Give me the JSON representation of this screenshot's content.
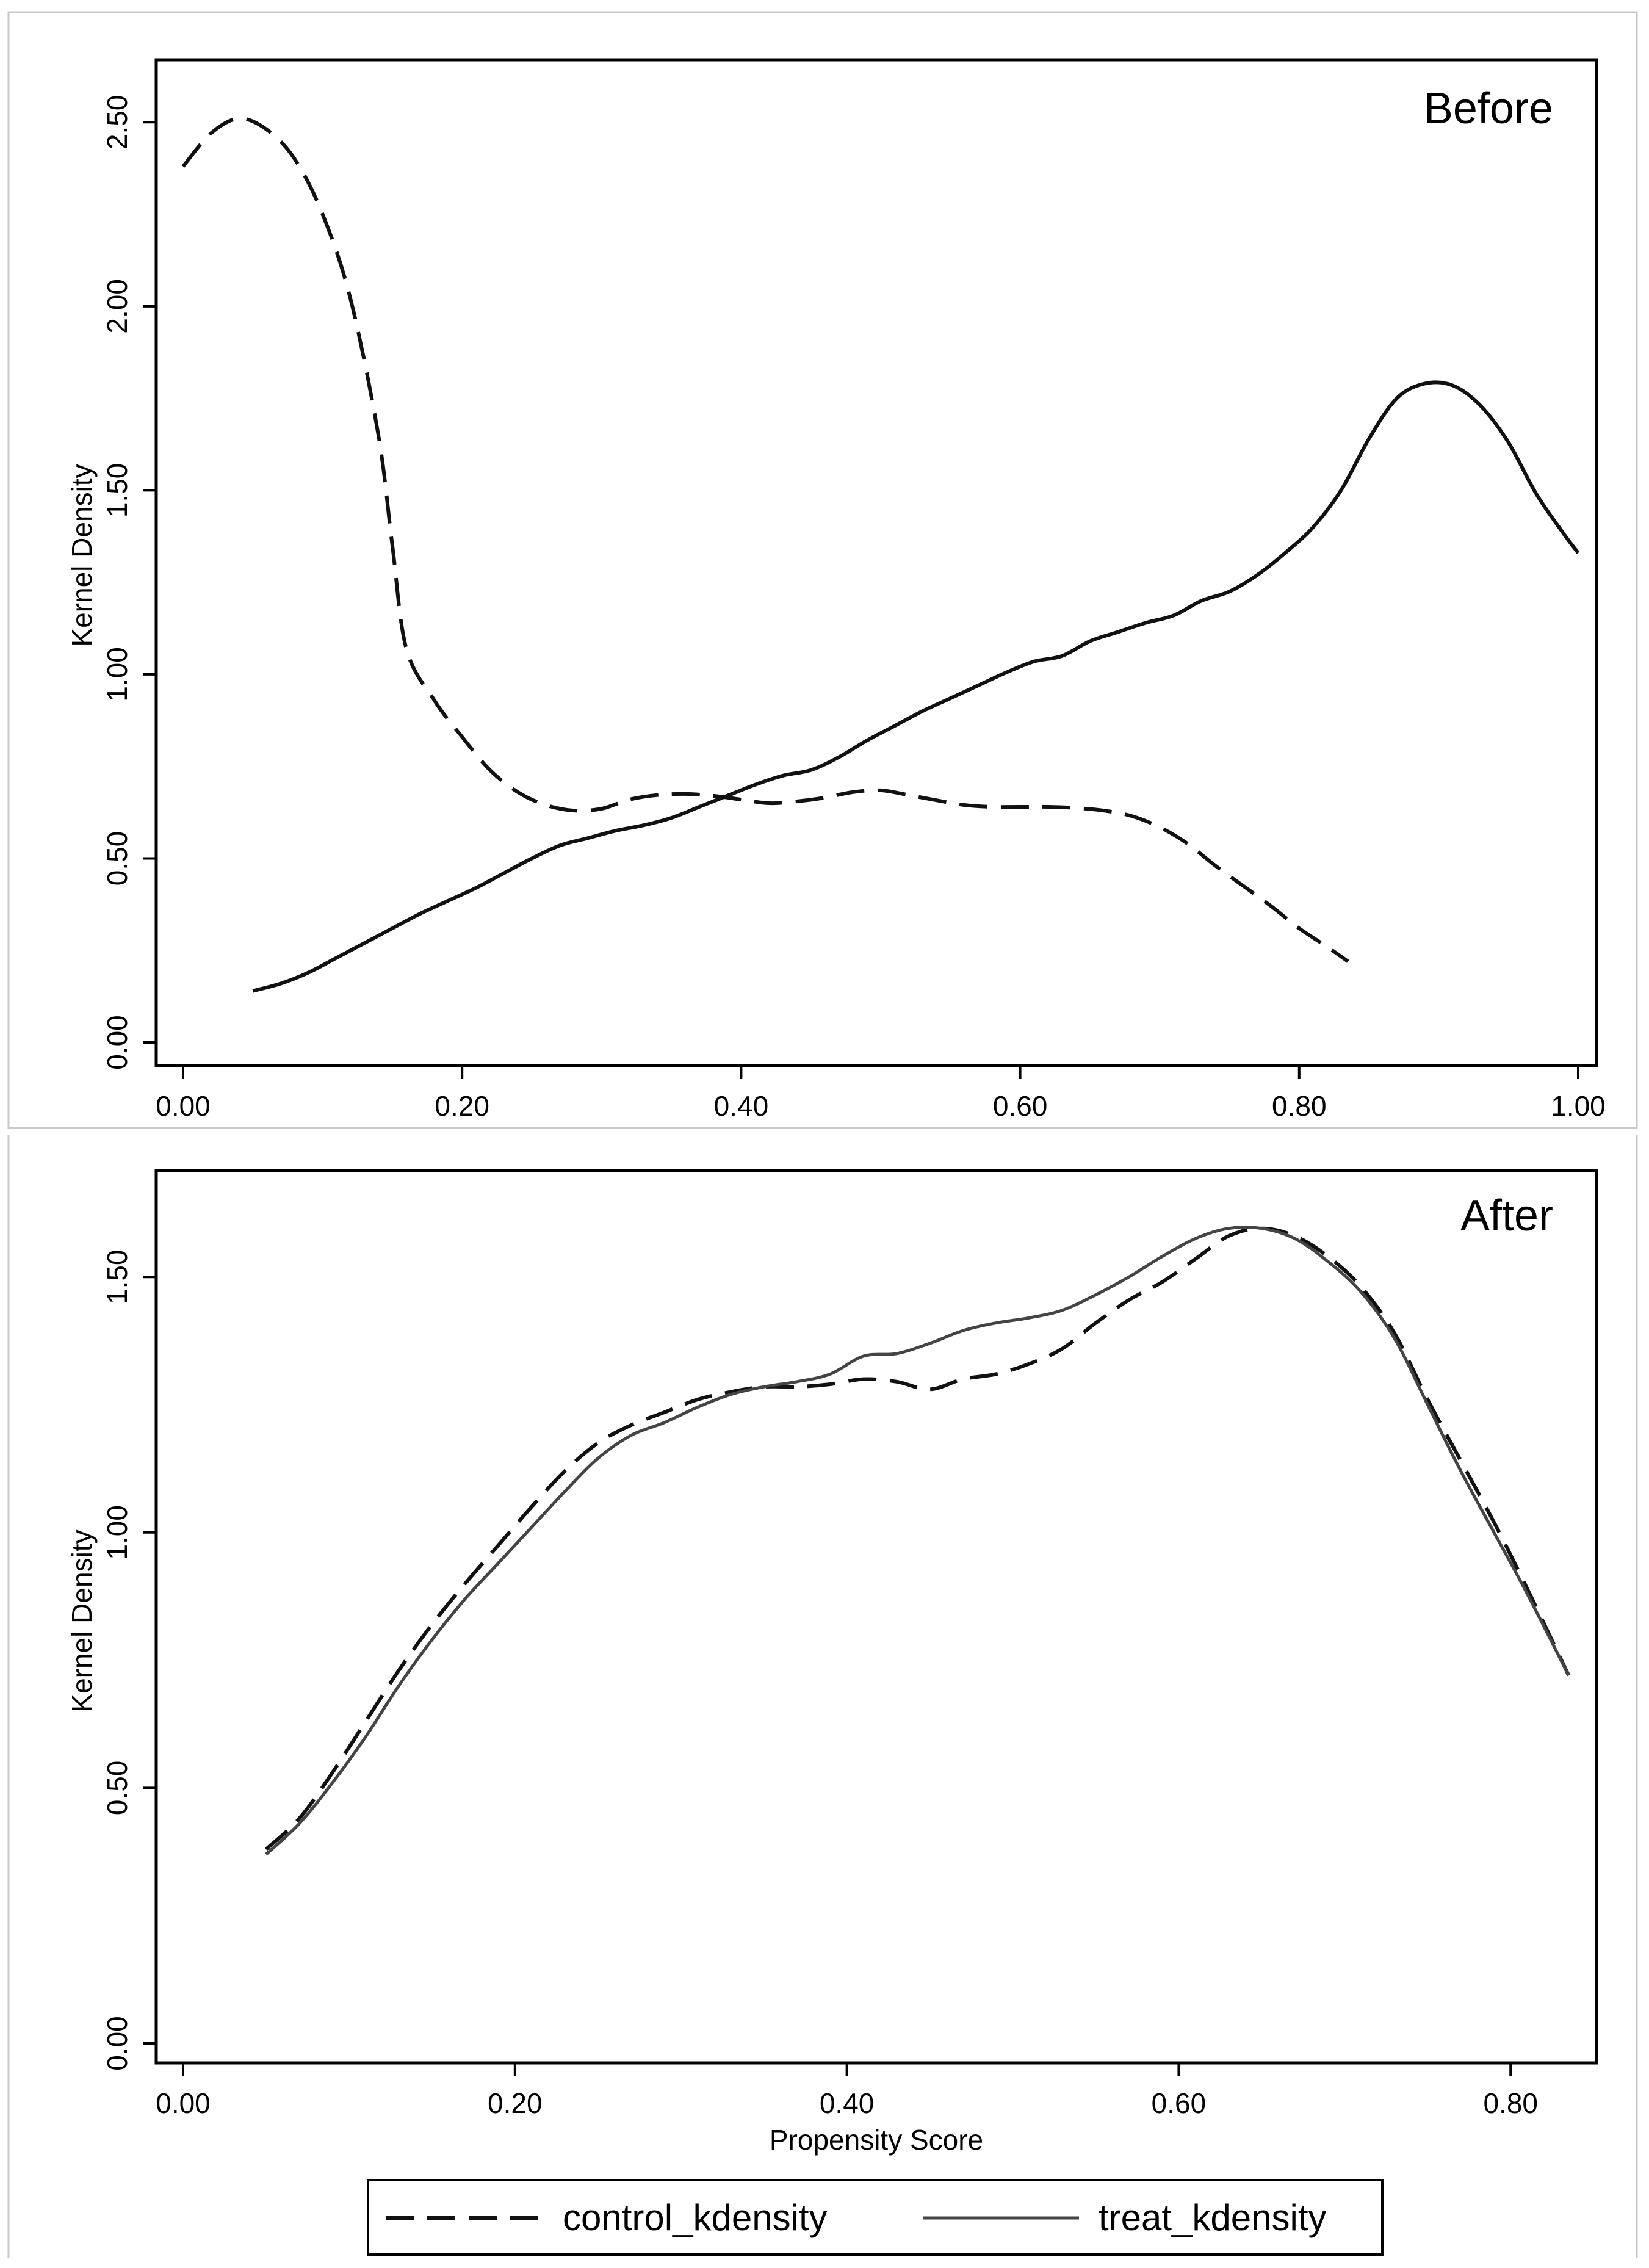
{
  "chart_data": [
    {
      "type": "line",
      "title": "Before",
      "xlabel": "",
      "ylabel": "Kernel Density",
      "xlim": [
        0,
        1.0
      ],
      "ylim": [
        0,
        2.6
      ],
      "xticks": [
        "0.00",
        "0.20",
        "0.40",
        "0.60",
        "0.80",
        "1.00"
      ],
      "yticks": [
        "0.00",
        "0.50",
        "1.00",
        "1.50",
        "2.00",
        "2.50"
      ],
      "series": [
        {
          "name": "control_kdensity",
          "style": "dashed",
          "x": [
            0.0,
            0.02,
            0.04,
            0.06,
            0.08,
            0.1,
            0.12,
            0.14,
            0.15,
            0.16,
            0.18,
            0.2,
            0.22,
            0.24,
            0.26,
            0.28,
            0.3,
            0.32,
            0.34,
            0.36,
            0.38,
            0.4,
            0.42,
            0.44,
            0.46,
            0.48,
            0.5,
            0.52,
            0.54,
            0.56,
            0.58,
            0.6,
            0.62,
            0.64,
            0.66,
            0.68,
            0.7,
            0.72,
            0.74,
            0.76,
            0.78,
            0.8,
            0.82,
            0.835
          ],
          "y": [
            2.38,
            2.47,
            2.51,
            2.48,
            2.4,
            2.25,
            2.02,
            1.65,
            1.35,
            1.07,
            0.93,
            0.83,
            0.74,
            0.68,
            0.645,
            0.63,
            0.635,
            0.66,
            0.672,
            0.675,
            0.67,
            0.66,
            0.65,
            0.655,
            0.665,
            0.68,
            0.685,
            0.672,
            0.658,
            0.645,
            0.64,
            0.64,
            0.64,
            0.637,
            0.63,
            0.615,
            0.585,
            0.54,
            0.48,
            0.425,
            0.37,
            0.31,
            0.26,
            0.22
          ]
        },
        {
          "name": "treat_kdensity",
          "style": "solid",
          "x": [
            0.05,
            0.07,
            0.09,
            0.11,
            0.13,
            0.15,
            0.17,
            0.19,
            0.21,
            0.23,
            0.25,
            0.27,
            0.29,
            0.31,
            0.33,
            0.35,
            0.37,
            0.39,
            0.41,
            0.43,
            0.45,
            0.47,
            0.49,
            0.51,
            0.53,
            0.55,
            0.57,
            0.59,
            0.61,
            0.63,
            0.65,
            0.67,
            0.69,
            0.71,
            0.73,
            0.75,
            0.77,
            0.79,
            0.81,
            0.83,
            0.85,
            0.87,
            0.89,
            0.91,
            0.93,
            0.95,
            0.97,
            0.99,
            1.0
          ],
          "y": [
            0.14,
            0.16,
            0.19,
            0.23,
            0.27,
            0.31,
            0.35,
            0.385,
            0.42,
            0.46,
            0.5,
            0.535,
            0.555,
            0.575,
            0.59,
            0.61,
            0.64,
            0.67,
            0.7,
            0.725,
            0.74,
            0.775,
            0.82,
            0.86,
            0.9,
            0.935,
            0.97,
            1.005,
            1.035,
            1.05,
            1.09,
            1.115,
            1.14,
            1.16,
            1.2,
            1.225,
            1.27,
            1.33,
            1.4,
            1.5,
            1.64,
            1.75,
            1.79,
            1.785,
            1.73,
            1.63,
            1.49,
            1.38,
            1.33
          ]
        }
      ]
    },
    {
      "type": "line",
      "title": "After",
      "xlabel": "Propensity Score",
      "ylabel": "Kernel Density",
      "xlim": [
        0,
        0.84
      ],
      "ylim": [
        0,
        1.64
      ],
      "xticks": [
        "0.00",
        "0.20",
        "0.40",
        "0.60",
        "0.80"
      ],
      "yticks": [
        "0.00",
        "0.50",
        "1.00",
        "1.50"
      ],
      "series": [
        {
          "name": "control_kdensity",
          "style": "dashed",
          "x": [
            0.05,
            0.07,
            0.09,
            0.11,
            0.13,
            0.15,
            0.17,
            0.19,
            0.21,
            0.23,
            0.25,
            0.27,
            0.29,
            0.31,
            0.33,
            0.35,
            0.37,
            0.39,
            0.41,
            0.43,
            0.45,
            0.47,
            0.49,
            0.51,
            0.53,
            0.55,
            0.57,
            0.59,
            0.61,
            0.63,
            0.65,
            0.67,
            0.69,
            0.71,
            0.73,
            0.75,
            0.77,
            0.79,
            0.81,
            0.835
          ],
          "y": [
            0.38,
            0.44,
            0.53,
            0.63,
            0.73,
            0.82,
            0.9,
            0.975,
            1.05,
            1.12,
            1.175,
            1.21,
            1.235,
            1.26,
            1.275,
            1.285,
            1.285,
            1.29,
            1.3,
            1.295,
            1.28,
            1.3,
            1.31,
            1.33,
            1.36,
            1.41,
            1.455,
            1.49,
            1.535,
            1.58,
            1.595,
            1.58,
            1.54,
            1.48,
            1.39,
            1.26,
            1.14,
            1.02,
            0.89,
            0.72
          ]
        },
        {
          "name": "treat_kdensity",
          "style": "solid",
          "x": [
            0.05,
            0.07,
            0.09,
            0.11,
            0.13,
            0.15,
            0.17,
            0.19,
            0.21,
            0.23,
            0.25,
            0.27,
            0.29,
            0.31,
            0.33,
            0.35,
            0.37,
            0.39,
            0.41,
            0.43,
            0.45,
            0.47,
            0.49,
            0.51,
            0.53,
            0.55,
            0.57,
            0.59,
            0.61,
            0.63,
            0.65,
            0.67,
            0.69,
            0.71,
            0.73,
            0.75,
            0.77,
            0.79,
            0.81,
            0.835
          ],
          "y": [
            0.37,
            0.43,
            0.51,
            0.6,
            0.7,
            0.79,
            0.87,
            0.94,
            1.01,
            1.08,
            1.145,
            1.19,
            1.215,
            1.245,
            1.27,
            1.285,
            1.295,
            1.31,
            1.345,
            1.35,
            1.37,
            1.395,
            1.41,
            1.42,
            1.435,
            1.465,
            1.5,
            1.54,
            1.575,
            1.595,
            1.595,
            1.575,
            1.53,
            1.47,
            1.38,
            1.25,
            1.12,
            1.0,
            0.88,
            0.72
          ]
        }
      ]
    }
  ],
  "legend": {
    "items": [
      {
        "label": "control_kdensity",
        "style": "dashed"
      },
      {
        "label": "treat_kdensity",
        "style": "solid"
      }
    ]
  }
}
